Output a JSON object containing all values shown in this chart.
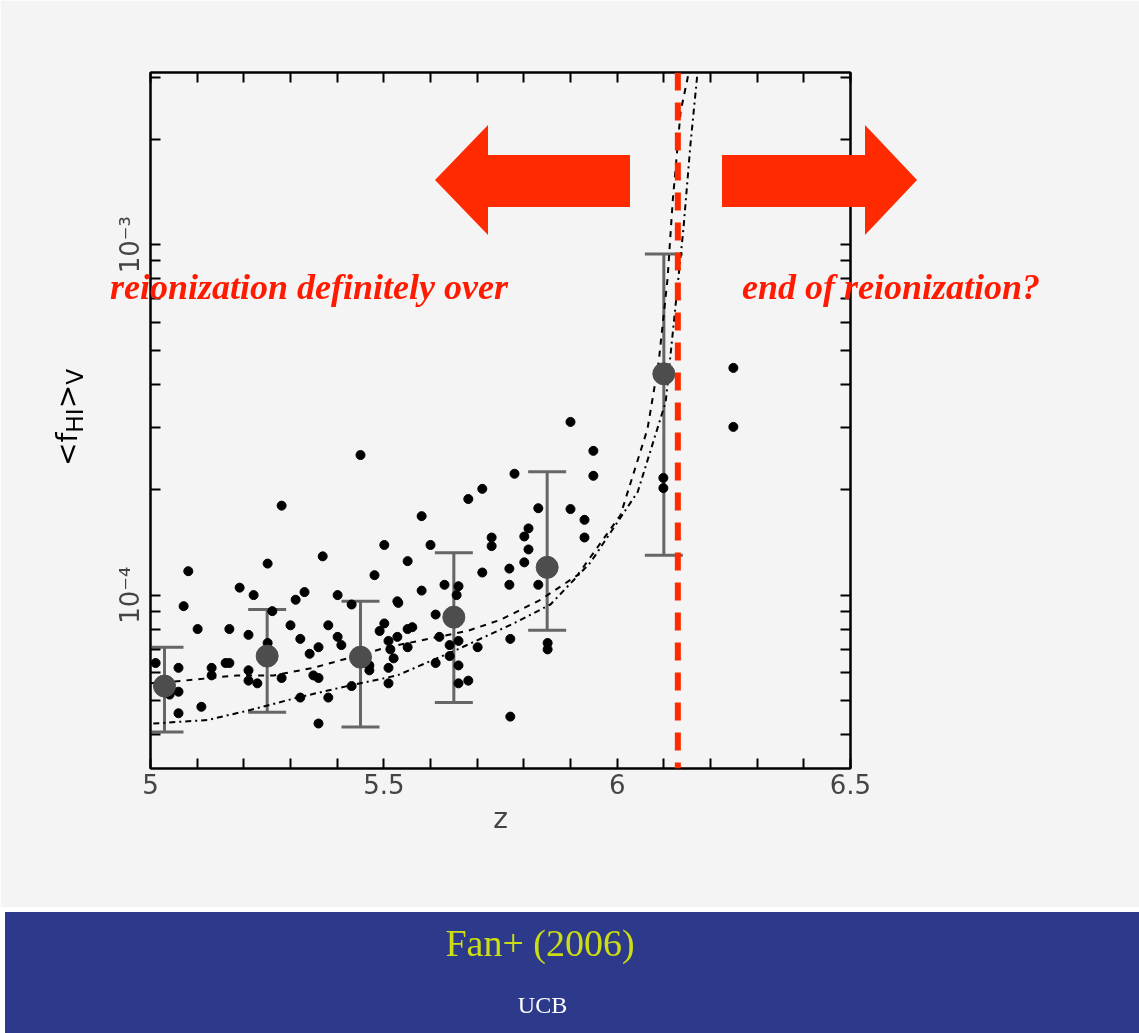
{
  "chart_data": {
    "type": "scatter",
    "xlabel": "z",
    "ylabel": "<f$_{HI}$>$_{V}$",
    "log": "y",
    "grid": false,
    "marker": "circle",
    "xlim": [
      5,
      6.5
    ],
    "ylim": [
      3.2e-05,
      0.0031
    ],
    "xticks": [
      5,
      {
        "value": 5.1,
        "label": null
      },
      {
        "value": 5.2,
        "label": null
      },
      {
        "value": 5.3,
        "label": null
      },
      {
        "value": 5.4,
        "label": null
      },
      5.5,
      {
        "value": 5.6,
        "label": null
      },
      {
        "value": 5.7,
        "label": null
      },
      {
        "value": 5.8,
        "label": null
      },
      {
        "value": 5.9,
        "label": null
      },
      6,
      {
        "value": 6.1,
        "label": null
      },
      {
        "value": 6.2,
        "label": null
      },
      {
        "value": 6.3,
        "label": null
      },
      {
        "value": 6.4,
        "label": null
      },
      6.5
    ],
    "yticks": [
      {
        "value": 4e-05,
        "label": null
      },
      {
        "value": 5e-05,
        "label": null
      },
      {
        "value": 6e-05,
        "label": null
      },
      {
        "value": 7e-05,
        "label": null
      },
      {
        "value": 8e-05,
        "label": null
      },
      {
        "value": 9e-05,
        "label": null
      },
      {
        "value": 0.0001,
        "label": "10⁻⁴"
      },
      {
        "value": 0.0002,
        "label": null
      },
      {
        "value": 0.0003,
        "label": null
      },
      {
        "value": 0.0004,
        "label": null
      },
      {
        "value": 0.0005,
        "label": null
      },
      {
        "value": 0.0006,
        "label": null
      },
      {
        "value": 0.0007,
        "label": null
      },
      {
        "value": 0.0008,
        "label": null
      },
      {
        "value": 0.0009,
        "label": null
      },
      {
        "value": 0.001,
        "label": "10⁻³"
      },
      {
        "value": 0.002,
        "label": null
      },
      {
        "value": 0.003,
        "label": null
      }
    ],
    "series": [
      {
        "color": "#000000",
        "x": [
          5.281,
          5.081,
          5.251,
          5.369,
          5.501,
          5.48,
          5.071,
          5.191,
          5.221,
          5.311,
          5.33,
          5.401,
          5.431,
          5.529,
          5.261,
          5.101,
          5.169,
          5.21,
          5.3,
          5.321,
          5.381,
          5.401,
          5.409,
          5.36,
          5.341,
          5.251,
          5.011,
          5.06,
          5.131,
          5.131,
          5.161,
          5.169,
          5.21,
          5.21,
          5.229,
          5.281,
          5.06,
          5.041,
          5.06,
          5.109,
          5.321,
          5.36,
          5.349,
          5.381,
          5.36,
          5.431,
          5.469,
          5.469,
          5.501,
          5.491,
          5.51,
          5.529,
          5.521,
          5.51,
          5.51,
          5.9,
          5.949,
          5.949,
          5.78,
          5.711,
          5.681,
          5.581,
          5.6,
          5.551,
          5.731,
          5.731,
          5.81,
          5.801,
          5.81,
          5.801,
          5.831,
          5.9,
          5.93,
          5.93,
          5.711,
          5.769,
          5.769,
          5.831,
          5.581,
          5.531,
          5.63,
          5.66,
          5.656,
          5.611,
          5.551,
          5.561,
          5.551,
          5.514,
          5.619,
          5.66,
          5.641,
          5.701,
          5.641,
          5.611,
          5.66,
          5.771,
          5.66,
          5.681,
          5.771,
          5.851,
          5.851,
          5.45,
          6.249,
          6.249,
          6.099,
          6.099
        ],
        "values": [
          0.00018,
          0.000117,
          0.000123,
          0.000129,
          0.000139,
          0.000114,
          9.3e-05,
          0.000105,
          0.0001,
          9.7e-05,
          0.000102,
          0.0001,
          9.4e-05,
          9.6e-05,
          9e-05,
          8e-05,
          8e-05,
          7.7e-05,
          8.2e-05,
          7.5e-05,
          8.2e-05,
          7.6e-05,
          7.2e-05,
          7.1e-05,
          6.8e-05,
          7.3e-05,
          6.4e-05,
          6.2e-05,
          6.2e-05,
          5.9e-05,
          6.4e-05,
          6.4e-05,
          6.1e-05,
          5.7e-05,
          5.6e-05,
          5.8e-05,
          5.3e-05,
          5.2e-05,
          4.6e-05,
          4.8e-05,
          5.1e-05,
          5.8e-05,
          5.9e-05,
          5.1e-05,
          4.3e-05,
          5.5e-05,
          6.3e-05,
          6.1e-05,
          8.3e-05,
          7.9e-05,
          7.4e-05,
          7.6e-05,
          6.6e-05,
          6.2e-05,
          5.6e-05,
          0.000312,
          0.000258,
          0.000219,
          0.000222,
          0.000201,
          0.000188,
          0.000168,
          0.000139,
          0.000125,
          0.000146,
          0.000138,
          0.000155,
          0.000147,
          0.000135,
          0.000124,
          0.000177,
          0.000176,
          0.000164,
          0.000146,
          0.000116,
          0.000119,
          0.000107,
          0.000107,
          0.000103,
          9.5e-05,
          0.000107,
          0.000106,
          0.0001,
          8.8e-05,
          8e-05,
          8.1e-05,
          7.1e-05,
          7e-05,
          7.6e-05,
          7.4e-05,
          7.2e-05,
          7.1e-05,
          6.7e-05,
          6.4e-05,
          6.3e-05,
          7.5e-05,
          5.6e-05,
          5.7e-05,
          4.5e-05,
          7.3e-05,
          7e-05,
          0.000251,
          0.000445,
          0.000302,
          0.000216,
          0.000202
        ]
      },
      {
        "type": "line",
        "color": "#000000",
        "line_style": "dashed",
        "marker": "none",
        "x": [
          5.0,
          5.071,
          5.186,
          5.264,
          5.349,
          5.422,
          5.508,
          5.679,
          5.75,
          5.836,
          5.915,
          6.007,
          6.065,
          6.089,
          6.108,
          6.119,
          6.136,
          6.153
        ],
        "values": [
          5.6e-05,
          5.7e-05,
          5.9e-05,
          5.9e-05,
          6.2e-05,
          6.6e-05,
          7.1e-05,
          7.9e-05,
          8.5e-05,
          9.7e-05,
          0.000114,
          0.000169,
          0.000298,
          0.000463,
          0.0008,
          0.00133,
          0.0024,
          0.00308
        ]
      },
      {
        "type": "line",
        "color": "#000000",
        "line_style": "dashdot",
        "marker": "none",
        "x": [
          5.006,
          5.122,
          5.214,
          5.315,
          5.422,
          5.529,
          5.658,
          5.778,
          5.857,
          5.943,
          6.044,
          6.104,
          6.142,
          6.157,
          6.172
        ],
        "values": [
          4.3e-05,
          4.4e-05,
          4.7e-05,
          5.1e-05,
          5.5e-05,
          5.9e-05,
          7e-05,
          8.3e-05,
          9.4e-05,
          0.000124,
          0.000197,
          0.000356,
          0.00111,
          0.00193,
          0.00308
        ]
      },
      {
        "color": "#4d4d4d",
        "x": [
          5.03,
          5.25,
          5.45,
          5.65,
          5.85,
          6.1
        ],
        "values": [
          5.5e-05,
          6.7e-05,
          6.65e-05,
          8.65e-05,
          0.00012,
          0.000428
        ],
        "errors": [
          [
            4.07e-05,
            7.1e-05
          ],
          [
            4.63e-05,
            9.1e-05
          ],
          [
            4.2e-05,
            9.6e-05
          ],
          [
            4.94e-05,
            0.000132
          ],
          [
            7.94e-05,
            0.000225
          ],
          [
            0.00013,
            0.00094
          ]
        ]
      }
    ],
    "ref_lines": [
      {
        "axis": "x",
        "value": 6.13,
        "color": "#ff2a00",
        "line_style": "dashed"
      }
    ],
    "annotations": [
      "reionization definitely over",
      "end of reionization?",
      "Fan+ (2006)",
      "UCB"
    ]
  }
}
